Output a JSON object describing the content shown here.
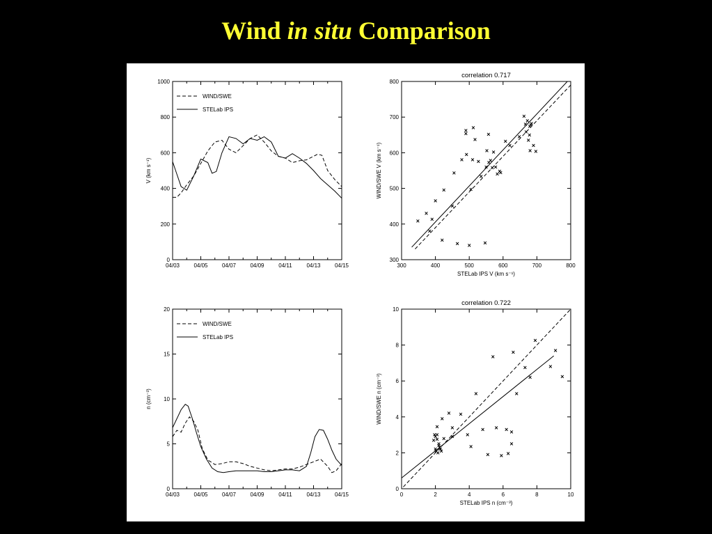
{
  "slide": {
    "title_a": "Wind",
    "title_b": "in situ",
    "title_c": "Comparison"
  },
  "chart_data": [
    {
      "type": "line",
      "ylabel": "V (km s⁻¹)",
      "ylim": [
        0,
        1000
      ],
      "y_ticks": [
        0,
        200,
        400,
        600,
        800,
        1000
      ],
      "x_ticks": [
        "04/03",
        "04/05",
        "04/07",
        "04/09",
        "04/11",
        "04/13",
        "04/15"
      ],
      "xlim_days": [
        3,
        15
      ],
      "legend_position": "top-left",
      "series": [
        {
          "name": "WIND/SWE",
          "dash": true,
          "x": [
            3.0,
            3.3,
            3.6,
            4.0,
            4.5,
            5.0,
            5.5,
            6.0,
            6.5,
            7.0,
            7.5,
            8.0,
            8.5,
            9.0,
            9.5,
            10.0,
            10.5,
            11.0,
            11.5,
            12.0,
            12.5,
            13.0,
            13.3,
            13.6,
            14.0,
            14.5,
            15.0
          ],
          "y": [
            350,
            350,
            375,
            420,
            470,
            540,
            610,
            660,
            670,
            620,
            600,
            640,
            680,
            700,
            660,
            610,
            580,
            570,
            545,
            555,
            560,
            580,
            592,
            585,
            500,
            450,
            410
          ]
        },
        {
          "name": "STELab IPS",
          "dash": false,
          "x": [
            3.0,
            3.3,
            3.6,
            4.0,
            4.5,
            5.0,
            5.5,
            5.8,
            6.1,
            6.5,
            7.0,
            7.5,
            8.0,
            8.5,
            9.0,
            9.5,
            10.0,
            10.5,
            11.0,
            11.5,
            12.0,
            12.5,
            13.0,
            13.5,
            14.0,
            14.5,
            15.0
          ],
          "y": [
            550,
            480,
            410,
            390,
            470,
            565,
            545,
            485,
            495,
            600,
            690,
            680,
            650,
            680,
            670,
            690,
            660,
            580,
            570,
            595,
            570,
            540,
            500,
            455,
            420,
            385,
            345
          ]
        }
      ]
    },
    {
      "type": "scatter",
      "title": "correlation 0.717",
      "xlabel": "STELab IPS V (km s⁻¹)",
      "ylabel": "WIND/SWE V (km s⁻¹)",
      "xlim": [
        300,
        800
      ],
      "ylim": [
        300,
        800
      ],
      "x_ticks": [
        300,
        400,
        500,
        600,
        700,
        800
      ],
      "y_ticks": [
        300,
        400,
        500,
        600,
        700,
        800
      ],
      "fit_line": [
        [
          330,
          335
        ],
        [
          790,
          800
        ]
      ],
      "identity_line": [
        [
          340,
          330
        ],
        [
          800,
          790
        ]
      ],
      "points": [
        [
          348,
          408
        ],
        [
          373,
          430
        ],
        [
          383,
          380
        ],
        [
          390,
          413
        ],
        [
          400,
          465
        ],
        [
          420,
          355
        ],
        [
          425,
          495
        ],
        [
          450,
          450
        ],
        [
          455,
          543
        ],
        [
          465,
          345
        ],
        [
          478,
          580
        ],
        [
          490,
          662
        ],
        [
          490,
          654
        ],
        [
          492,
          595
        ],
        [
          500,
          340
        ],
        [
          505,
          497
        ],
        [
          510,
          580
        ],
        [
          512,
          670
        ],
        [
          517,
          637
        ],
        [
          527,
          575
        ],
        [
          535,
          533
        ],
        [
          547,
          347
        ],
        [
          550,
          560
        ],
        [
          552,
          606
        ],
        [
          557,
          652
        ],
        [
          558,
          572
        ],
        [
          563,
          578
        ],
        [
          568,
          558
        ],
        [
          572,
          602
        ],
        [
          578,
          560
        ],
        [
          583,
          540
        ],
        [
          590,
          548
        ],
        [
          593,
          544
        ],
        [
          607,
          632
        ],
        [
          620,
          620
        ],
        [
          648,
          645
        ],
        [
          662,
          702
        ],
        [
          666,
          680
        ],
        [
          668,
          658
        ],
        [
          672,
          690
        ],
        [
          675,
          635
        ],
        [
          678,
          650
        ],
        [
          679,
          674
        ],
        [
          680,
          606
        ],
        [
          682,
          678
        ],
        [
          684,
          682
        ],
        [
          690,
          620
        ],
        [
          697,
          604
        ]
      ]
    },
    {
      "type": "line",
      "ylabel": "n (cm⁻³)",
      "ylim": [
        0,
        20
      ],
      "y_ticks": [
        0,
        5,
        10,
        15,
        20
      ],
      "x_ticks": [
        "04/03",
        "04/05",
        "04/07",
        "04/09",
        "04/11",
        "04/13",
        "04/15"
      ],
      "xlim_days": [
        3,
        15
      ],
      "legend_position": "top-left",
      "series": [
        {
          "name": "WIND/SWE",
          "dash": true,
          "x": [
            3.0,
            3.3,
            3.6,
            3.9,
            4.2,
            4.5,
            4.8,
            5.1,
            5.5,
            6.0,
            6.5,
            7.0,
            7.5,
            8.0,
            8.5,
            9.0,
            9.5,
            10.0,
            10.5,
            11.0,
            11.5,
            12.0,
            12.5,
            13.0,
            13.5,
            14.0,
            14.3,
            14.6,
            15.0
          ],
          "y": [
            5.8,
            6.5,
            6.3,
            7.3,
            8.0,
            7.5,
            6.5,
            4.5,
            3.2,
            2.7,
            2.8,
            3.0,
            3.0,
            2.8,
            2.5,
            2.3,
            2.1,
            2.0,
            2.1,
            2.2,
            2.2,
            2.4,
            2.7,
            3.0,
            3.3,
            2.5,
            1.8,
            2.0,
            2.8
          ]
        },
        {
          "name": "STELab IPS",
          "dash": false,
          "x": [
            3.0,
            3.3,
            3.6,
            3.9,
            4.1,
            4.4,
            4.7,
            5.0,
            5.4,
            5.8,
            6.2,
            6.6,
            7.0,
            7.5,
            8.0,
            8.5,
            9.0,
            9.5,
            10.0,
            10.5,
            11.0,
            11.5,
            12.0,
            12.5,
            12.8,
            13.1,
            13.4,
            13.7,
            14.0,
            14.3,
            14.6,
            15.0
          ],
          "y": [
            6.8,
            7.8,
            8.8,
            9.4,
            9.2,
            7.8,
            6.2,
            4.7,
            3.3,
            2.3,
            1.9,
            1.8,
            1.9,
            2.0,
            2.0,
            2.0,
            2.0,
            1.9,
            1.9,
            2.0,
            2.1,
            2.1,
            2.0,
            2.5,
            4.0,
            5.8,
            6.6,
            6.5,
            5.5,
            4.3,
            3.3,
            2.6
          ]
        }
      ]
    },
    {
      "type": "scatter",
      "title": "correlation 0.722",
      "xlabel": "STELab IPS n (cm⁻³)",
      "ylabel": "WIND/SWE n (cm⁻³)",
      "xlim": [
        0,
        10
      ],
      "ylim": [
        0,
        10
      ],
      "x_ticks": [
        0,
        2,
        4,
        6,
        8,
        10
      ],
      "y_ticks": [
        0,
        2,
        4,
        6,
        8,
        10
      ],
      "fit_line": [
        [
          0,
          0.6
        ],
        [
          9.0,
          7.4
        ]
      ],
      "identity_line": [
        [
          0.1,
          0.1
        ],
        [
          10,
          10
        ]
      ],
      "points": [
        [
          1.9,
          2.7
        ],
        [
          1.95,
          3.0
        ],
        [
          2.0,
          2.2
        ],
        [
          2.0,
          2.9
        ],
        [
          2.05,
          2.1
        ],
        [
          2.1,
          2.75
        ],
        [
          2.1,
          3.0
        ],
        [
          2.1,
          3.45
        ],
        [
          2.15,
          2.0
        ],
        [
          2.2,
          2.5
        ],
        [
          2.2,
          2.4
        ],
        [
          2.25,
          2.3
        ],
        [
          2.3,
          2.2
        ],
        [
          2.35,
          2.1
        ],
        [
          2.4,
          3.9
        ],
        [
          2.5,
          2.8
        ],
        [
          2.8,
          4.2
        ],
        [
          3.0,
          2.9
        ],
        [
          3.0,
          3.4
        ],
        [
          3.5,
          4.15
        ],
        [
          3.9,
          3.0
        ],
        [
          4.1,
          2.35
        ],
        [
          4.4,
          5.3
        ],
        [
          4.8,
          3.3
        ],
        [
          5.1,
          1.9
        ],
        [
          5.4,
          7.35
        ],
        [
          5.6,
          3.4
        ],
        [
          5.9,
          1.85
        ],
        [
          6.2,
          3.3
        ],
        [
          6.3,
          1.95
        ],
        [
          6.5,
          2.5
        ],
        [
          6.5,
          3.15
        ],
        [
          6.6,
          7.6
        ],
        [
          6.8,
          5.3
        ],
        [
          7.3,
          6.75
        ],
        [
          7.6,
          6.2
        ],
        [
          7.9,
          8.25
        ],
        [
          8.8,
          6.8
        ],
        [
          9.1,
          7.7
        ],
        [
          9.5,
          6.25
        ]
      ]
    }
  ]
}
